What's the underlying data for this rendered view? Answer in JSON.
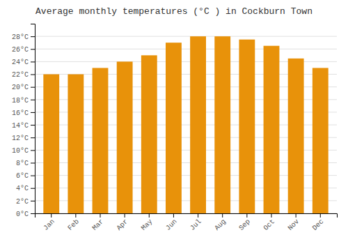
{
  "chart_data": {
    "type": "bar",
    "title": "Average monthly temperatures (°C ) in Cockburn Town",
    "categories": [
      "Jan",
      "Feb",
      "Mar",
      "Apr",
      "May",
      "Jun",
      "Jul",
      "Aug",
      "Sep",
      "Oct",
      "Nov",
      "Dec"
    ],
    "values": [
      22,
      22,
      23,
      24,
      25,
      27,
      28,
      28,
      27.5,
      26.5,
      24.5,
      23
    ],
    "color": "#E8920A",
    "ylim": [
      0,
      30
    ],
    "yticks": [
      {
        "value": 0,
        "label": "0°C"
      },
      {
        "value": 2,
        "label": "2°C"
      },
      {
        "value": 4,
        "label": "4°C"
      },
      {
        "value": 6,
        "label": "6°C"
      },
      {
        "value": 8,
        "label": "8°C"
      },
      {
        "value": 10,
        "label": "10°C"
      },
      {
        "value": 12,
        "label": "12°C"
      },
      {
        "value": 14,
        "label": "14°C"
      },
      {
        "value": 16,
        "label": "16°C"
      },
      {
        "value": 18,
        "label": "18°C"
      },
      {
        "value": 20,
        "label": "20°C"
      },
      {
        "value": 22,
        "label": "22°C"
      },
      {
        "value": 24,
        "label": "24°C"
      },
      {
        "value": 26,
        "label": "26°C"
      },
      {
        "value": 28,
        "label": "28°C"
      }
    ],
    "grid": true
  }
}
